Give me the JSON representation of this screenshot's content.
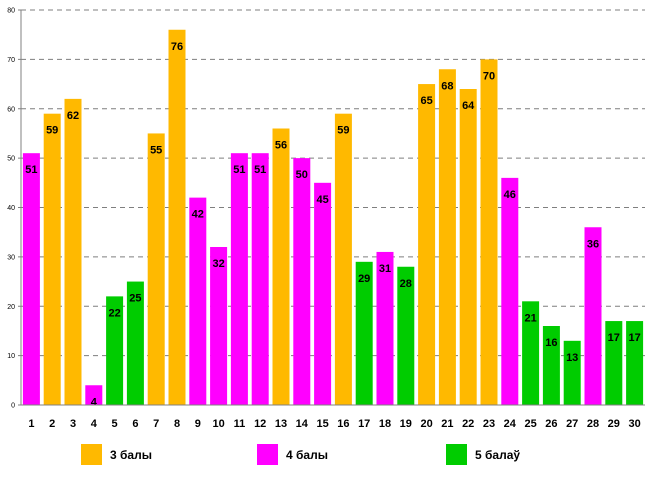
{
  "chart_data": {
    "type": "bar",
    "title": "",
    "xlabel": "",
    "ylabel": "",
    "ylim": [
      0,
      80
    ],
    "yticks": [
      0,
      10,
      20,
      30,
      40,
      50,
      60,
      70,
      80
    ],
    "categories": [
      "1",
      "2",
      "3",
      "4",
      "5",
      "6",
      "7",
      "8",
      "9",
      "10",
      "11",
      "12",
      "13",
      "14",
      "15",
      "16",
      "17",
      "18",
      "19",
      "20",
      "21",
      "22",
      "23",
      "24",
      "25",
      "26",
      "27",
      "28",
      "29",
      "30"
    ],
    "values": [
      51,
      59,
      62,
      4,
      22,
      25,
      55,
      76,
      42,
      32,
      51,
      51,
      56,
      50,
      45,
      59,
      29,
      31,
      28,
      65,
      68,
      64,
      70,
      46,
      21,
      16,
      13,
      36,
      17,
      17
    ],
    "groups": [
      1,
      0,
      0,
      1,
      2,
      2,
      0,
      0,
      1,
      1,
      1,
      1,
      0,
      1,
      1,
      0,
      2,
      1,
      2,
      0,
      0,
      0,
      0,
      1,
      2,
      2,
      2,
      1,
      2,
      2
    ],
    "legend": [
      {
        "label": "3 балы",
        "color": "#FFB900"
      },
      {
        "label": "4 балы",
        "color": "#FF00FF"
      },
      {
        "label": "5 балаў",
        "color": "#00CC00"
      }
    ],
    "grid": true
  }
}
